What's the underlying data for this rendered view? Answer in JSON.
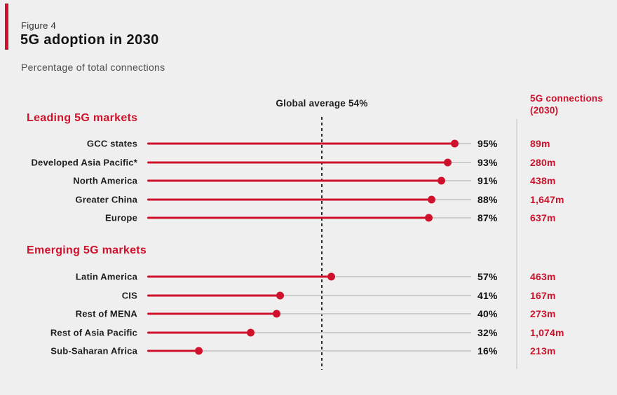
{
  "figure": {
    "label": "Figure 4",
    "title": "5G adoption in 2030",
    "subtitle": "Percentage of total connections"
  },
  "colors": {
    "accent_red": "#d0112b",
    "background": "#f0efef",
    "track_gray": "#cdcdcd",
    "text_dark": "#1d1d1d"
  },
  "chart_data": {
    "type": "lollipop-bar",
    "title": "5G adoption in 2030",
    "subtitle": "Percentage of total connections",
    "xlabel": "Percentage of total connections",
    "xlim": [
      0,
      100
    ],
    "grid": false,
    "global_average": {
      "value": 54,
      "label": "Global average 54%"
    },
    "right_column_header_line1": "5G connections",
    "right_column_header_line2": "(2030)",
    "groups": [
      {
        "label": "Leading 5G markets",
        "rows": [
          {
            "label": "GCC states",
            "pct": 95,
            "pct_label": "95%",
            "connections": "89m"
          },
          {
            "label": "Developed Asia Pacific*",
            "pct": 93,
            "pct_label": "93%",
            "connections": "280m"
          },
          {
            "label": "North America",
            "pct": 91,
            "pct_label": "91%",
            "connections": "438m"
          },
          {
            "label": "Greater China",
            "pct": 88,
            "pct_label": "88%",
            "connections": "1,647m"
          },
          {
            "label": "Europe",
            "pct": 87,
            "pct_label": "87%",
            "connections": "637m"
          }
        ]
      },
      {
        "label": "Emerging 5G markets",
        "rows": [
          {
            "label": "Latin America",
            "pct": 57,
            "pct_label": "57%",
            "connections": "463m"
          },
          {
            "label": "CIS",
            "pct": 41,
            "pct_label": "41%",
            "connections": "167m"
          },
          {
            "label": "Rest of MENA",
            "pct": 40,
            "pct_label": "40%",
            "connections": "273m"
          },
          {
            "label": "Rest of Asia Pacific",
            "pct": 32,
            "pct_label": "32%",
            "connections": "1,074m"
          },
          {
            "label": "Sub-Saharan Africa",
            "pct": 16,
            "pct_label": "16%",
            "connections": "213m"
          }
        ]
      }
    ]
  }
}
